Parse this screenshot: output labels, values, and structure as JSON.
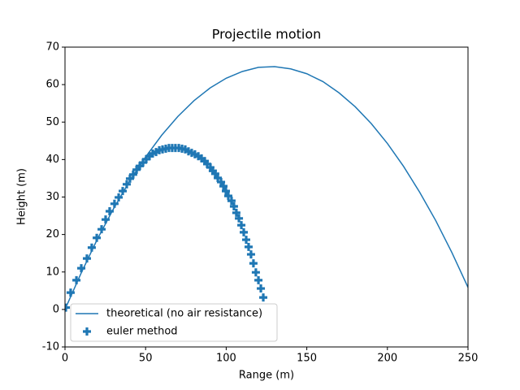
{
  "chart_data": {
    "type": "line",
    "title": "Projectile motion",
    "x_label": "Range (m)",
    "y_label": "Height (m)",
    "xlim": [
      0,
      250
    ],
    "ylim": [
      -10,
      70
    ],
    "xticks": [
      0,
      50,
      100,
      150,
      200,
      250
    ],
    "yticks": [
      -10,
      0,
      10,
      20,
      30,
      40,
      50,
      60,
      70
    ],
    "legend": "lower left",
    "grid": false,
    "series": [
      {
        "name": "theoretical (no air resistance)",
        "type": "line",
        "color": "#1f77b4",
        "x": [
          0,
          10,
          20,
          30,
          40,
          50,
          60,
          70,
          80,
          90,
          100,
          110,
          120,
          130,
          140,
          150,
          160,
          170,
          180,
          190,
          200,
          210,
          220,
          230,
          240,
          250
        ],
        "y": [
          0,
          9.7,
          18.7,
          26.8,
          34.2,
          40.7,
          46.5,
          51.5,
          55.7,
          59.1,
          61.7,
          63.5,
          64.6,
          64.8,
          64.2,
          62.9,
          60.8,
          57.8,
          54.1,
          49.6,
          44.3,
          38.2,
          31.3,
          23.7,
          15.2,
          5.9
        ]
      },
      {
        "name": "euler method",
        "type": "scatter",
        "color": "#1f77b4",
        "x": [
          0.5,
          3.5,
          7.1,
          10.1,
          13.6,
          16.6,
          19.7,
          22.7,
          25.2,
          27.7,
          30.7,
          33.3,
          35.8,
          38.3,
          40.3,
          42.3,
          44.4,
          46.4,
          48.4,
          50.4,
          52.4,
          54.4,
          56.5,
          58.5,
          60.5,
          62.5,
          64.5,
          66.5,
          68.5,
          70.6,
          72.6,
          74.6,
          76.6,
          78.6,
          80.6,
          82.7,
          84.7,
          86.7,
          88.2,
          90.2,
          91.7,
          93.2,
          94.8,
          96.8,
          98.3,
          99.8,
          101.3,
          103.3,
          104.8,
          106.3,
          107.9,
          109.4,
          110.9,
          112.4,
          113.9,
          115.4,
          116.9,
          118.4,
          120.0,
          121.5,
          123.0
        ],
        "y": [
          0.5,
          4.5,
          7.8,
          11.0,
          13.6,
          16.5,
          19.1,
          21.4,
          24.0,
          26.2,
          28.2,
          29.9,
          31.6,
          33.4,
          34.9,
          36.0,
          37.3,
          38.3,
          39.2,
          40.1,
          40.9,
          41.6,
          42.0,
          42.5,
          42.7,
          42.9,
          43.1,
          43.1,
          43.1,
          43.1,
          42.9,
          42.7,
          42.2,
          41.8,
          41.4,
          40.9,
          40.3,
          39.6,
          38.8,
          37.9,
          37.0,
          36.2,
          35.1,
          34.0,
          32.9,
          31.6,
          30.3,
          29.0,
          27.5,
          25.8,
          24.3,
          22.5,
          20.6,
          18.6,
          16.7,
          14.7,
          12.3,
          9.9,
          7.8,
          5.6,
          3.2
        ]
      }
    ]
  }
}
